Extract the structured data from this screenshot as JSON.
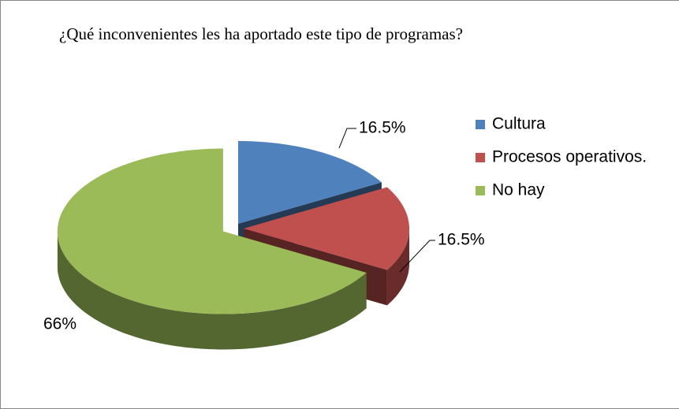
{
  "chart_data": {
    "type": "pie",
    "title": "¿Qué inconvenientes les ha aportado este tipo de programas?",
    "categories": [
      "Cultura",
      "Procesos operativos.",
      "No hay"
    ],
    "values": [
      16.5,
      16.5,
      66
    ],
    "value_labels": [
      "16.5%",
      "16.5%",
      "66%"
    ],
    "colors": [
      "#4f81bd",
      "#c0504d",
      "#9bbb59"
    ],
    "legend": "right"
  }
}
